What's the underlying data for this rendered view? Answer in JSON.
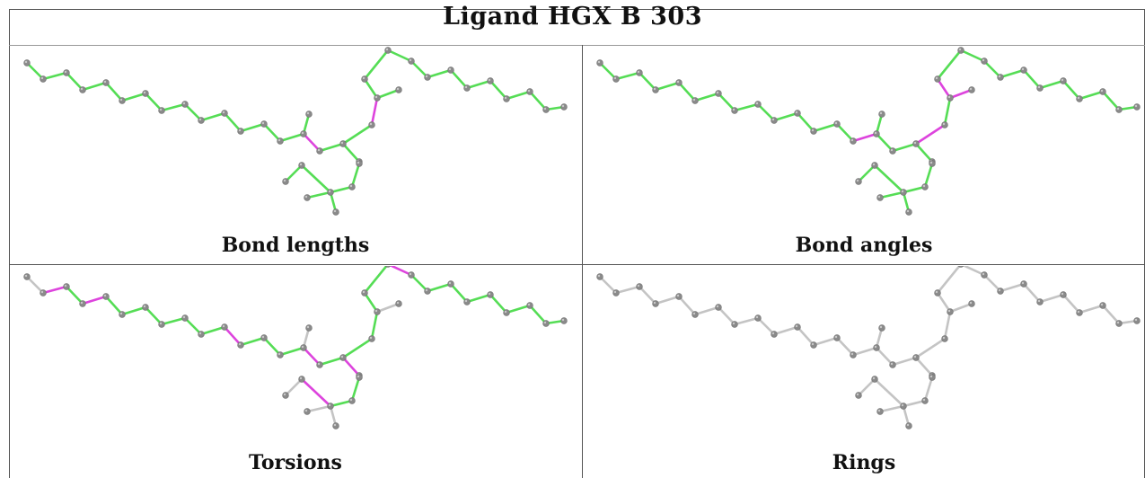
{
  "title": "Ligand HGX B 303",
  "panels": [
    {
      "caption": "Bond lengths"
    },
    {
      "caption": "Bond angles"
    },
    {
      "caption": "Torsions"
    },
    {
      "caption": "Rings"
    }
  ],
  "colors": {
    "ok": "#55dd55",
    "outlier": "#dd44dd",
    "neutral": "#c4c4c4",
    "atom": "#8a8a8a",
    "atom_highlight": "#c8c8c8"
  }
}
